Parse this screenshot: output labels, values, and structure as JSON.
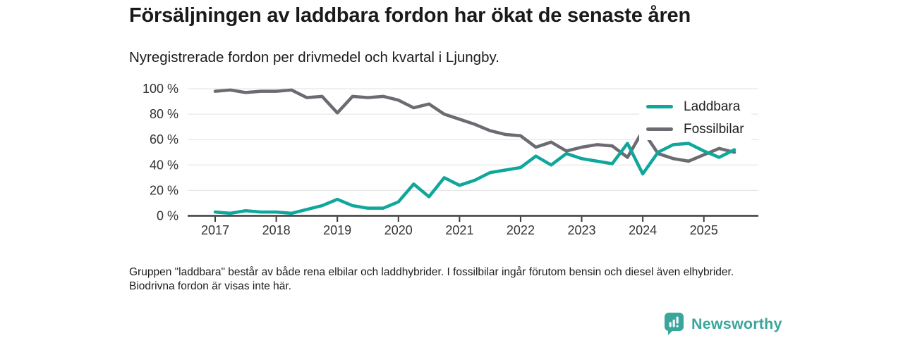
{
  "header": {
    "title": "Försäljningen av laddbara fordon har ökat de senaste åren",
    "subtitle": "Nyregistrerade fordon per drivmedel och kvartal i Ljungby."
  },
  "chart_data": {
    "type": "line",
    "title": "Nyregistrerade fordon per drivmedel och kvartal i Ljungby",
    "x": [
      "2017Q1",
      "2017Q2",
      "2017Q3",
      "2017Q4",
      "2018Q1",
      "2018Q2",
      "2018Q3",
      "2018Q4",
      "2019Q1",
      "2019Q2",
      "2019Q3",
      "2019Q4",
      "2020Q1",
      "2020Q2",
      "2020Q3",
      "2020Q4",
      "2021Q1",
      "2021Q2",
      "2021Q3",
      "2021Q4",
      "2022Q1",
      "2022Q2",
      "2022Q3",
      "2022Q4",
      "2023Q1",
      "2023Q2",
      "2023Q3",
      "2023Q4",
      "2024Q1",
      "2024Q2",
      "2024Q3",
      "2024Q4",
      "2025Q1",
      "2025Q2",
      "2025Q3"
    ],
    "series": [
      {
        "name": "Laddbara",
        "color": "#0fa79c",
        "values": [
          3,
          2,
          4,
          3,
          3,
          2,
          5,
          8,
          13,
          8,
          6,
          6,
          11,
          25,
          15,
          30,
          24,
          28,
          34,
          36,
          38,
          47,
          40,
          49,
          45,
          43,
          41,
          57,
          33,
          50,
          56,
          57,
          51,
          46,
          52
        ]
      },
      {
        "name": "Fossilbilar",
        "color": "#6b6b71",
        "values": [
          98,
          99,
          97,
          98,
          98,
          99,
          93,
          94,
          81,
          94,
          93,
          94,
          91,
          85,
          88,
          80,
          76,
          72,
          67,
          64,
          63,
          54,
          58,
          51,
          54,
          56,
          55,
          46,
          67,
          49,
          45,
          43,
          48,
          53,
          50
        ]
      }
    ],
    "ylim": [
      0,
      100
    ],
    "yticks": [
      {
        "value": 0,
        "label": "0 %"
      },
      {
        "value": 20,
        "label": "20 %"
      },
      {
        "value": 40,
        "label": "40 %"
      },
      {
        "value": 60,
        "label": "60 %"
      },
      {
        "value": 80,
        "label": "80 %"
      },
      {
        "value": 100,
        "label": "100 %"
      }
    ],
    "xticks": [
      {
        "value": 2017,
        "label": "2017"
      },
      {
        "value": 2018,
        "label": "2018"
      },
      {
        "value": 2019,
        "label": "2019"
      },
      {
        "value": 2020,
        "label": "2020"
      },
      {
        "value": 2021,
        "label": "2021"
      },
      {
        "value": 2022,
        "label": "2022"
      },
      {
        "value": 2023,
        "label": "2023"
      },
      {
        "value": 2024,
        "label": "2024"
      },
      {
        "value": 2025,
        "label": "2025"
      }
    ],
    "unit": "%",
    "grid": true,
    "legend_position": "top-right"
  },
  "footnote": {
    "text": "Gruppen \"laddbara\" består av både rena elbilar och laddhybrider. I fossilbilar ingår förutom bensin och diesel även elhybrider. Biodrivna fordon är visas inte här."
  },
  "logo": {
    "text": "Newsworthy"
  },
  "brand": {
    "teal": "#3aa69b"
  }
}
